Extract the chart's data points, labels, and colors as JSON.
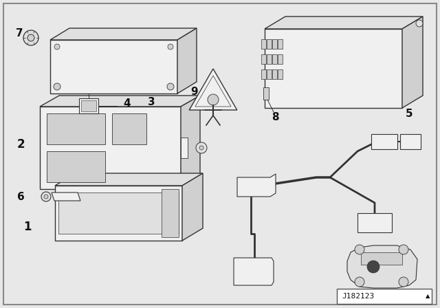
{
  "bg_color": "#e8e8e8",
  "line_color": "#333333",
  "part_num_color": "#111111",
  "diagram_code": "J182123",
  "component_fill": "#f0f0f0",
  "component_fill2": "#e0e0e0",
  "component_fill3": "#d0d0d0",
  "white": "#ffffff"
}
